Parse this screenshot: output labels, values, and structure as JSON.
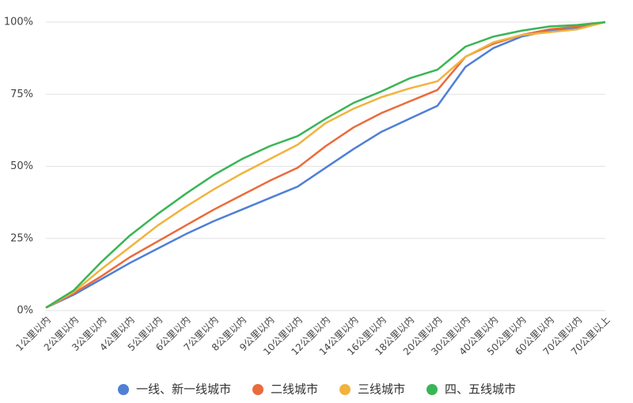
{
  "chart_data": {
    "type": "line",
    "categories": [
      "1公里以内",
      "2公里以内",
      "3公里以内",
      "4公里以内",
      "5公里以内",
      "6公里以内",
      "7公里以内",
      "8公里以内",
      "9公里以内",
      "10公里以内",
      "12公里以内",
      "14公里以内",
      "16公里以内",
      "18公里以内",
      "20公里以内",
      "30公里以内",
      "40公里以内",
      "50公里以内",
      "60公里以内",
      "70公里以内",
      "70公里以上"
    ],
    "series": [
      {
        "name": "一线、新一线城市",
        "color": "#4f7fd6",
        "values": [
          1,
          5.5,
          11,
          16.5,
          21.5,
          26.5,
          31,
          35,
          39,
          43,
          49.5,
          56,
          62,
          66.5,
          71,
          84.5,
          91,
          95,
          97,
          98,
          100
        ]
      },
      {
        "name": "二线城市",
        "color": "#ea6b3c",
        "values": [
          1,
          6,
          12,
          18.5,
          24,
          29.5,
          35,
          40,
          45,
          49.5,
          57,
          63.5,
          68.5,
          72.5,
          76.5,
          88,
          92.5,
          95.5,
          97.5,
          98.5,
          100
        ]
      },
      {
        "name": "三线城市",
        "color": "#f1b33d",
        "values": [
          1,
          6.5,
          14.5,
          22,
          29.5,
          36,
          42,
          47.5,
          52.5,
          57.5,
          65,
          70,
          74,
          77,
          79.5,
          88,
          93,
          95.5,
          96.5,
          97.5,
          100
        ]
      },
      {
        "name": "四、五线城市",
        "color": "#3ab556",
        "values": [
          1,
          7,
          17,
          26,
          33.5,
          40.5,
          47,
          52.5,
          57,
          60.5,
          66.5,
          72,
          76,
          80.5,
          83.5,
          91.5,
          95,
          97,
          98.5,
          99,
          100
        ]
      }
    ],
    "ylim": [
      0,
      100
    ],
    "yticks": [
      {
        "value": 0,
        "label": "0%"
      },
      {
        "value": 25,
        "label": "25%"
      },
      {
        "value": 50,
        "label": "50%"
      },
      {
        "value": 75,
        "label": "75%"
      },
      {
        "value": 100,
        "label": "100%"
      }
    ],
    "grid": true,
    "legend": "bottom"
  }
}
